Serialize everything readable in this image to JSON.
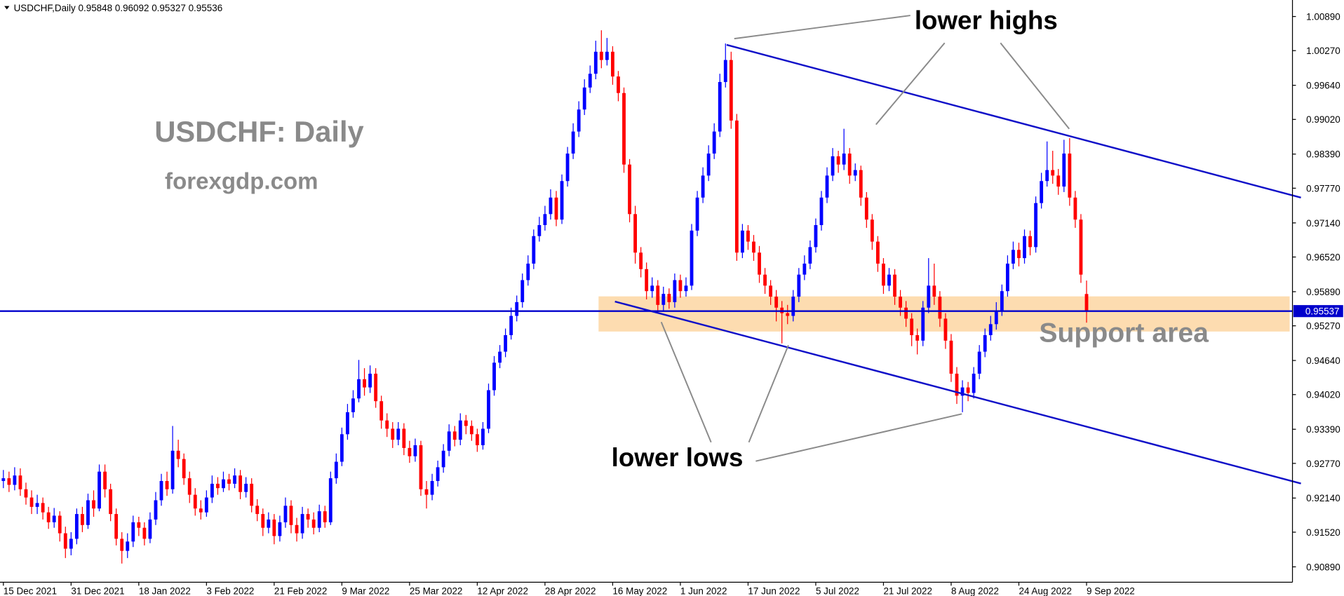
{
  "chart_data": {
    "type": "candlestick",
    "header": "USDCHF,Daily  0.95848 0.96092 0.95327 0.95536",
    "up_color": "#0000ff",
    "down_color": "#ff0000",
    "candles": [
      [
        0.9245,
        0.9265,
        0.9232,
        0.925
      ],
      [
        0.925,
        0.9262,
        0.9225,
        0.9238
      ],
      [
        0.9238,
        0.927,
        0.9228,
        0.9255
      ],
      [
        0.9255,
        0.9268,
        0.9218,
        0.923
      ],
      [
        0.923,
        0.9242,
        0.9202,
        0.9215
      ],
      [
        0.9215,
        0.9228,
        0.9185,
        0.9198
      ],
      [
        0.9198,
        0.922,
        0.9185,
        0.9205
      ],
      [
        0.9205,
        0.9215,
        0.9175,
        0.9188
      ],
      [
        0.9188,
        0.9198,
        0.9158,
        0.917
      ],
      [
        0.917,
        0.9196,
        0.916,
        0.9182
      ],
      [
        0.9182,
        0.919,
        0.9135,
        0.915
      ],
      [
        0.915,
        0.9162,
        0.9105,
        0.9122
      ],
      [
        0.9122,
        0.9152,
        0.911,
        0.914
      ],
      [
        0.914,
        0.9195,
        0.913,
        0.9185
      ],
      [
        0.9185,
        0.9198,
        0.9152,
        0.9165
      ],
      [
        0.9165,
        0.9222,
        0.9158,
        0.921
      ],
      [
        0.921,
        0.9228,
        0.918,
        0.9195
      ],
      [
        0.9195,
        0.9275,
        0.919,
        0.9262
      ],
      [
        0.9262,
        0.9275,
        0.9215,
        0.923
      ],
      [
        0.923,
        0.924,
        0.9172,
        0.9185
      ],
      [
        0.9185,
        0.9195,
        0.9128,
        0.914
      ],
      [
        0.914,
        0.9152,
        0.9095,
        0.9118
      ],
      [
        0.9118,
        0.915,
        0.9105,
        0.9135
      ],
      [
        0.9135,
        0.9182,
        0.9125,
        0.917
      ],
      [
        0.917,
        0.918,
        0.9145,
        0.916
      ],
      [
        0.916,
        0.917,
        0.9128,
        0.914
      ],
      [
        0.914,
        0.9188,
        0.9132,
        0.9175
      ],
      [
        0.9175,
        0.9225,
        0.9165,
        0.921
      ],
      [
        0.921,
        0.9258,
        0.92,
        0.9245
      ],
      [
        0.9245,
        0.9262,
        0.9218,
        0.923
      ],
      [
        0.923,
        0.9345,
        0.9222,
        0.93
      ],
      [
        0.93,
        0.932,
        0.927,
        0.9285
      ],
      [
        0.9285,
        0.9295,
        0.9238,
        0.925
      ],
      [
        0.925,
        0.9262,
        0.9205,
        0.922
      ],
      [
        0.922,
        0.9232,
        0.9182,
        0.9195
      ],
      [
        0.9195,
        0.921,
        0.9175,
        0.9188
      ],
      [
        0.9188,
        0.9228,
        0.918,
        0.9215
      ],
      [
        0.9215,
        0.9255,
        0.9205,
        0.924
      ],
      [
        0.924,
        0.9252,
        0.922,
        0.9232
      ],
      [
        0.9232,
        0.9262,
        0.9225,
        0.9248
      ],
      [
        0.9248,
        0.9258,
        0.9228,
        0.924
      ],
      [
        0.924,
        0.9268,
        0.9232,
        0.9255
      ],
      [
        0.9255,
        0.9265,
        0.9212,
        0.9225
      ],
      [
        0.9225,
        0.9252,
        0.9215,
        0.924
      ],
      [
        0.924,
        0.925,
        0.9188,
        0.92
      ],
      [
        0.92,
        0.9212,
        0.9172,
        0.9185
      ],
      [
        0.9185,
        0.9195,
        0.9145,
        0.916
      ],
      [
        0.916,
        0.9188,
        0.915,
        0.9175
      ],
      [
        0.9175,
        0.9185,
        0.913,
        0.9145
      ],
      [
        0.9145,
        0.9182,
        0.9135,
        0.917
      ],
      [
        0.917,
        0.9215,
        0.916,
        0.92
      ],
      [
        0.92,
        0.921,
        0.915,
        0.9165
      ],
      [
        0.9165,
        0.9178,
        0.9135,
        0.915
      ],
      [
        0.915,
        0.9198,
        0.914,
        0.9185
      ],
      [
        0.9185,
        0.9195,
        0.916,
        0.9175
      ],
      [
        0.9175,
        0.9188,
        0.9148,
        0.916
      ],
      [
        0.916,
        0.9202,
        0.9152,
        0.919
      ],
      [
        0.919,
        0.92,
        0.916,
        0.917
      ],
      [
        0.917,
        0.9262,
        0.9165,
        0.925
      ],
      [
        0.925,
        0.9295,
        0.924,
        0.928
      ],
      [
        0.928,
        0.9342,
        0.9272,
        0.933
      ],
      [
        0.933,
        0.9385,
        0.932,
        0.937
      ],
      [
        0.937,
        0.941,
        0.936,
        0.9395
      ],
      [
        0.9395,
        0.9465,
        0.9388,
        0.943
      ],
      [
        0.943,
        0.945,
        0.94,
        0.9415
      ],
      [
        0.9415,
        0.9455,
        0.9405,
        0.944
      ],
      [
        0.944,
        0.945,
        0.9378,
        0.939
      ],
      [
        0.939,
        0.94,
        0.934,
        0.9355
      ],
      [
        0.9355,
        0.9368,
        0.9325,
        0.934
      ],
      [
        0.934,
        0.9352,
        0.9305,
        0.932
      ],
      [
        0.932,
        0.9352,
        0.931,
        0.934
      ],
      [
        0.934,
        0.935,
        0.9292,
        0.9305
      ],
      [
        0.9305,
        0.9318,
        0.9278,
        0.929
      ],
      [
        0.929,
        0.9322,
        0.928,
        0.931
      ],
      [
        0.931,
        0.9318,
        0.9218,
        0.923
      ],
      [
        0.923,
        0.9245,
        0.9195,
        0.922
      ],
      [
        0.922,
        0.9258,
        0.921,
        0.9245
      ],
      [
        0.9245,
        0.9282,
        0.9235,
        0.927
      ],
      [
        0.927,
        0.9312,
        0.926,
        0.93
      ],
      [
        0.93,
        0.9348,
        0.929,
        0.9335
      ],
      [
        0.9335,
        0.9345,
        0.9308,
        0.932
      ],
      [
        0.932,
        0.9368,
        0.931,
        0.9355
      ],
      [
        0.9355,
        0.9365,
        0.933,
        0.9345
      ],
      [
        0.9345,
        0.9355,
        0.9318,
        0.933
      ],
      [
        0.933,
        0.934,
        0.9298,
        0.931
      ],
      [
        0.931,
        0.9352,
        0.9302,
        0.934
      ],
      [
        0.934,
        0.9422,
        0.9332,
        0.941
      ],
      [
        0.941,
        0.9472,
        0.94,
        0.946
      ],
      [
        0.946,
        0.9492,
        0.945,
        0.948
      ],
      [
        0.948,
        0.9522,
        0.947,
        0.951
      ],
      [
        0.951,
        0.956,
        0.9502,
        0.9545
      ],
      [
        0.9545,
        0.9582,
        0.9535,
        0.957
      ],
      [
        0.957,
        0.9622,
        0.956,
        0.961
      ],
      [
        0.961,
        0.9655,
        0.96,
        0.964
      ],
      [
        0.964,
        0.9702,
        0.963,
        0.969
      ],
      [
        0.969,
        0.9725,
        0.968,
        0.971
      ],
      [
        0.971,
        0.9745,
        0.97,
        0.973
      ],
      [
        0.973,
        0.9775,
        0.972,
        0.976
      ],
      [
        0.976,
        0.9772,
        0.9708,
        0.972
      ],
      [
        0.972,
        0.9802,
        0.9712,
        0.979
      ],
      [
        0.979,
        0.9852,
        0.978,
        0.984
      ],
      [
        0.984,
        0.9895,
        0.983,
        0.988
      ],
      [
        0.988,
        0.9935,
        0.987,
        0.992
      ],
      [
        0.992,
        0.9975,
        0.991,
        0.996
      ],
      [
        0.996,
        1.0,
        0.995,
        0.9985
      ],
      [
        0.9985,
        1.0045,
        0.9975,
        1.0025
      ],
      [
        1.0025,
        1.0064,
        0.9995,
        1.001
      ],
      [
        1.001,
        1.005,
        1.0,
        1.0025
      ],
      [
        1.0025,
        1.0035,
        0.9965,
        0.998
      ],
      [
        0.998,
        0.999,
        0.9935,
        0.995
      ],
      [
        0.995,
        0.996,
        0.9805,
        0.982
      ],
      [
        0.982,
        0.983,
        0.9715,
        0.973
      ],
      [
        0.973,
        0.9745,
        0.964,
        0.966
      ],
      [
        0.966,
        0.967,
        0.9615,
        0.963
      ],
      [
        0.963,
        0.9642,
        0.9575,
        0.959
      ],
      [
        0.959,
        0.9615,
        0.9578,
        0.96
      ],
      [
        0.96,
        0.961,
        0.955,
        0.9565
      ],
      [
        0.9565,
        0.9598,
        0.9555,
        0.9585
      ],
      [
        0.9585,
        0.9595,
        0.9558,
        0.957
      ],
      [
        0.957,
        0.9622,
        0.956,
        0.961
      ],
      [
        0.961,
        0.962,
        0.9578,
        0.959
      ],
      [
        0.959,
        0.9615,
        0.958,
        0.96
      ],
      [
        0.96,
        0.9712,
        0.9592,
        0.97
      ],
      [
        0.97,
        0.9772,
        0.969,
        0.976
      ],
      [
        0.976,
        0.9815,
        0.975,
        0.98
      ],
      [
        0.98,
        0.9855,
        0.979,
        0.984
      ],
      [
        0.984,
        0.9895,
        0.983,
        0.988
      ],
      [
        0.988,
        0.9985,
        0.987,
        0.997
      ],
      [
        0.997,
        1.004,
        0.996,
        1.001
      ],
      [
        1.001,
        1.0025,
        0.9885,
        0.99
      ],
      [
        0.99,
        0.9912,
        0.9645,
        0.966
      ],
      [
        0.966,
        0.9712,
        0.965,
        0.97
      ],
      [
        0.97,
        0.971,
        0.9665,
        0.968
      ],
      [
        0.968,
        0.9692,
        0.9645,
        0.966
      ],
      [
        0.966,
        0.9672,
        0.9605,
        0.962
      ],
      [
        0.962,
        0.9632,
        0.9585,
        0.96
      ],
      [
        0.96,
        0.961,
        0.9565,
        0.958
      ],
      [
        0.958,
        0.9592,
        0.9535,
        0.956
      ],
      [
        0.956,
        0.9572,
        0.9495,
        0.955
      ],
      [
        0.955,
        0.9565,
        0.953,
        0.9545
      ],
      [
        0.9545,
        0.9592,
        0.9535,
        0.958
      ],
      [
        0.958,
        0.9632,
        0.957,
        0.962
      ],
      [
        0.962,
        0.9655,
        0.961,
        0.964
      ],
      [
        0.964,
        0.9682,
        0.963,
        0.967
      ],
      [
        0.967,
        0.9722,
        0.966,
        0.971
      ],
      [
        0.971,
        0.9772,
        0.97,
        0.976
      ],
      [
        0.976,
        0.9815,
        0.975,
        0.98
      ],
      [
        0.98,
        0.985,
        0.979,
        0.9835
      ],
      [
        0.9835,
        0.9845,
        0.9805,
        0.982
      ],
      [
        0.982,
        0.9885,
        0.981,
        0.984
      ],
      [
        0.984,
        0.985,
        0.9785,
        0.98
      ],
      [
        0.98,
        0.9822,
        0.979,
        0.981
      ],
      [
        0.981,
        0.9818,
        0.9745,
        0.976
      ],
      [
        0.976,
        0.977,
        0.9705,
        0.972
      ],
      [
        0.972,
        0.973,
        0.9665,
        0.968
      ],
      [
        0.968,
        0.969,
        0.9625,
        0.964
      ],
      [
        0.964,
        0.965,
        0.9585,
        0.96
      ],
      [
        0.96,
        0.9632,
        0.959,
        0.962
      ],
      [
        0.962,
        0.963,
        0.9565,
        0.958
      ],
      [
        0.958,
        0.9592,
        0.9545,
        0.956
      ],
      [
        0.956,
        0.9572,
        0.9525,
        0.954
      ],
      [
        0.954,
        0.955,
        0.949,
        0.951
      ],
      [
        0.951,
        0.9522,
        0.9475,
        0.95
      ],
      [
        0.95,
        0.9572,
        0.949,
        0.956
      ],
      [
        0.956,
        0.965,
        0.955,
        0.96
      ],
      [
        0.96,
        0.964,
        0.9565,
        0.958
      ],
      [
        0.958,
        0.959,
        0.9525,
        0.954
      ],
      [
        0.954,
        0.955,
        0.9485,
        0.95
      ],
      [
        0.95,
        0.9512,
        0.9425,
        0.944
      ],
      [
        0.944,
        0.9452,
        0.9385,
        0.94
      ],
      [
        0.94,
        0.9428,
        0.937,
        0.9415
      ],
      [
        0.9415,
        0.9425,
        0.939,
        0.9405
      ],
      [
        0.9405,
        0.9452,
        0.9395,
        0.944
      ],
      [
        0.944,
        0.9492,
        0.943,
        0.948
      ],
      [
        0.948,
        0.9522,
        0.947,
        0.951
      ],
      [
        0.951,
        0.9545,
        0.95,
        0.953
      ],
      [
        0.953,
        0.957,
        0.952,
        0.9555
      ],
      [
        0.9555,
        0.9602,
        0.9545,
        0.959
      ],
      [
        0.959,
        0.9655,
        0.958,
        0.964
      ],
      [
        0.964,
        0.968,
        0.963,
        0.9665
      ],
      [
        0.9665,
        0.9678,
        0.9635,
        0.965
      ],
      [
        0.965,
        0.9702,
        0.964,
        0.969
      ],
      [
        0.969,
        0.97,
        0.9655,
        0.967
      ],
      [
        0.967,
        0.9762,
        0.966,
        0.975
      ],
      [
        0.975,
        0.9805,
        0.974,
        0.979
      ],
      [
        0.979,
        0.9862,
        0.978,
        0.981
      ],
      [
        0.981,
        0.9845,
        0.9785,
        0.98
      ],
      [
        0.98,
        0.9812,
        0.9765,
        0.978
      ],
      [
        0.978,
        0.9865,
        0.977,
        0.984
      ],
      [
        0.984,
        0.9868,
        0.9745,
        0.976
      ],
      [
        0.976,
        0.9772,
        0.9705,
        0.972
      ],
      [
        0.972,
        0.973,
        0.9605,
        0.962
      ],
      [
        0.95848,
        0.96092,
        0.95327,
        0.95536
      ]
    ],
    "xlim": [
      -0.6,
      228.5
    ],
    "xticks": [
      {
        "value": 0,
        "label": "15 Dec 2021"
      },
      {
        "value": 12,
        "label": "31 Dec 2021"
      },
      {
        "value": 24,
        "label": "18 Jan 2022"
      },
      {
        "value": 36,
        "label": "3 Feb 2022"
      },
      {
        "value": 48,
        "label": "21 Feb 2022"
      },
      {
        "value": 60,
        "label": "9 Mar 2022"
      },
      {
        "value": 72,
        "label": "25 Mar 2022"
      },
      {
        "value": 84,
        "label": "12 Apr 2022"
      },
      {
        "value": 96,
        "label": "28 Apr 2022"
      },
      {
        "value": 108,
        "label": "16 May 2022"
      },
      {
        "value": 120,
        "label": "1 Jun 2022"
      },
      {
        "value": 132,
        "label": "17 Jun 2022"
      },
      {
        "value": 144,
        "label": "5 Jul 2022"
      },
      {
        "value": 156,
        "label": "21 Jul 2022"
      },
      {
        "value": 168,
        "label": "8 Aug 2022"
      },
      {
        "value": 180,
        "label": "24 Aug 2022"
      },
      {
        "value": 192,
        "label": "9 Sep 2022"
      }
    ],
    "ylim": [
      0.9061,
      1.0119
    ],
    "yticks": [
      {
        "value": 1.0089,
        "label": "1.00890"
      },
      {
        "value": 1.0027,
        "label": "1.00270"
      },
      {
        "value": 0.9964,
        "label": "0.99640"
      },
      {
        "value": 0.9902,
        "label": "0.99020"
      },
      {
        "value": 0.9839,
        "label": "0.98390"
      },
      {
        "value": 0.9777,
        "label": "0.97770"
      },
      {
        "value": 0.9714,
        "label": "0.97140"
      },
      {
        "value": 0.9652,
        "label": "0.96520"
      },
      {
        "value": 0.9589,
        "label": "0.95890"
      },
      {
        "value": 0.9527,
        "label": "0.95270"
      },
      {
        "value": 0.9464,
        "label": "0.94640"
      },
      {
        "value": 0.9402,
        "label": "0.94020"
      },
      {
        "value": 0.9339,
        "label": "0.93390"
      },
      {
        "value": 0.9277,
        "label": "0.92770"
      },
      {
        "value": 0.9214,
        "label": "0.92140"
      },
      {
        "value": 0.9152,
        "label": "0.91520"
      },
      {
        "value": 0.9089,
        "label": "0.90890"
      }
    ],
    "price_line": {
      "value": 0.95537,
      "label": "0.95537",
      "color": "#0000cc"
    },
    "zone": {
      "label": "Support area",
      "from": 0.95166,
      "to": 0.95805,
      "x_from": 105.5,
      "x_to": 228,
      "color": "#fddcb0"
    },
    "channel": {
      "color": "#1010c8",
      "lines": [
        {
          "x": [
            128.2,
            230
          ],
          "y": [
            1.00375,
            0.97599
          ]
        },
        {
          "x": [
            108.4,
            230
          ],
          "y": [
            0.95711,
            0.92404
          ]
        }
      ]
    },
    "annotations": {
      "title": "USDCHF: Daily",
      "site": "forexgdp.com",
      "highs": "lower highs",
      "lows": "lower lows"
    }
  }
}
